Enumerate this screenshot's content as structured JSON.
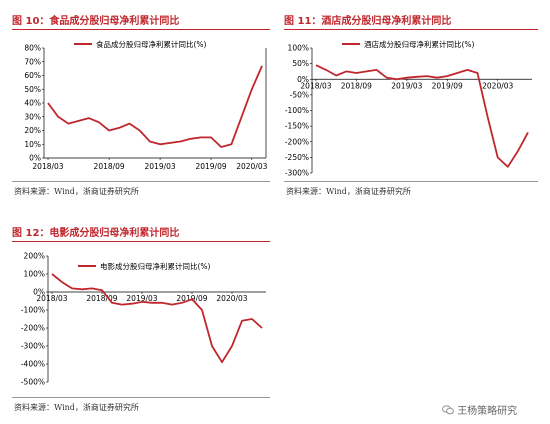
{
  "watermark": "王杨策略研究",
  "watermark_icon": "wechat-icon",
  "charts": [
    {
      "figure_label": "图 10：食品成分股归母净利累计同比",
      "source": "资料来源：Wind，浙商证券研究所",
      "chart_data": {
        "type": "line",
        "series": [
          {
            "name": "食品成分股归母净利累计同比(%)",
            "color": "#c0272d",
            "x": [
              0,
              1,
              2,
              3,
              4,
              5,
              6,
              7,
              8,
              9,
              10,
              11,
              12,
              13,
              14,
              15,
              16,
              17,
              18,
              19,
              20,
              21
            ],
            "values": [
              40,
              30,
              25,
              27,
              29,
              26,
              20,
              22,
              25,
              20,
              12,
              10,
              11,
              12,
              14,
              15,
              15,
              8,
              10,
              30,
              50,
              67
            ]
          }
        ],
        "xticks": [
          "2018/03",
          "2018/09",
          "2019/03",
          "2019/09",
          "2020/03"
        ],
        "xtick_pos": [
          0,
          6,
          11,
          16,
          20
        ],
        "ylim": [
          0,
          80
        ],
        "yticks": [
          0,
          10,
          20,
          30,
          40,
          50,
          60,
          70,
          80
        ],
        "unit": "%"
      }
    },
    {
      "figure_label": "图 11：酒店成分股归母净利累计同比",
      "source": "资料来源：Wind，浙商证券研究所",
      "chart_data": {
        "type": "line",
        "series": [
          {
            "name": "酒店成分股归母净利累计同比(%)",
            "color": "#c0272d",
            "x": [
              0,
              1,
              2,
              3,
              4,
              5,
              6,
              7,
              8,
              9,
              10,
              11,
              12,
              13,
              14,
              15,
              16,
              17,
              18,
              19,
              20,
              21
            ],
            "values": [
              45,
              30,
              12,
              25,
              20,
              25,
              30,
              5,
              0,
              5,
              8,
              10,
              5,
              10,
              20,
              30,
              20,
              -120,
              -250,
              -280,
              -230,
              -170
            ]
          }
        ],
        "xticks": [
          "2018/03",
          "2018/09",
          "2019/03",
          "2019/09",
          "2020/03"
        ],
        "xtick_pos": [
          0,
          4,
          9,
          13,
          18
        ],
        "ylim": [
          -300,
          100
        ],
        "yticks": [
          -300,
          -250,
          -200,
          -150,
          -100,
          -50,
          0,
          50,
          100
        ],
        "unit": "%"
      }
    },
    {
      "figure_label": "图 12：电影成分股归母净利累计同比",
      "source": "资料来源：Wind，浙商证券研究所",
      "chart_data": {
        "type": "line",
        "series": [
          {
            "name": "电影成分股归母净利累计同比(%)",
            "color": "#c0272d",
            "x": [
              0,
              1,
              2,
              3,
              4,
              5,
              6,
              7,
              8,
              9,
              10,
              11,
              12,
              13,
              14,
              15,
              16,
              17,
              18,
              19,
              20,
              21
            ],
            "values": [
              100,
              55,
              20,
              15,
              20,
              10,
              -60,
              -70,
              -65,
              -55,
              -60,
              -60,
              -70,
              -60,
              -40,
              -100,
              -300,
              -390,
              -300,
              -160,
              -150,
              -200
            ]
          }
        ],
        "xticks": [
          "2018/03",
          "2018/09",
          "2019/03",
          "2019/09",
          "2020/03"
        ],
        "xtick_pos": [
          0,
          5,
          9,
          14,
          18
        ],
        "ylim": [
          -500,
          200
        ],
        "yticks": [
          -500,
          -400,
          -300,
          -200,
          -100,
          0,
          100,
          200
        ],
        "unit": "%"
      }
    }
  ]
}
